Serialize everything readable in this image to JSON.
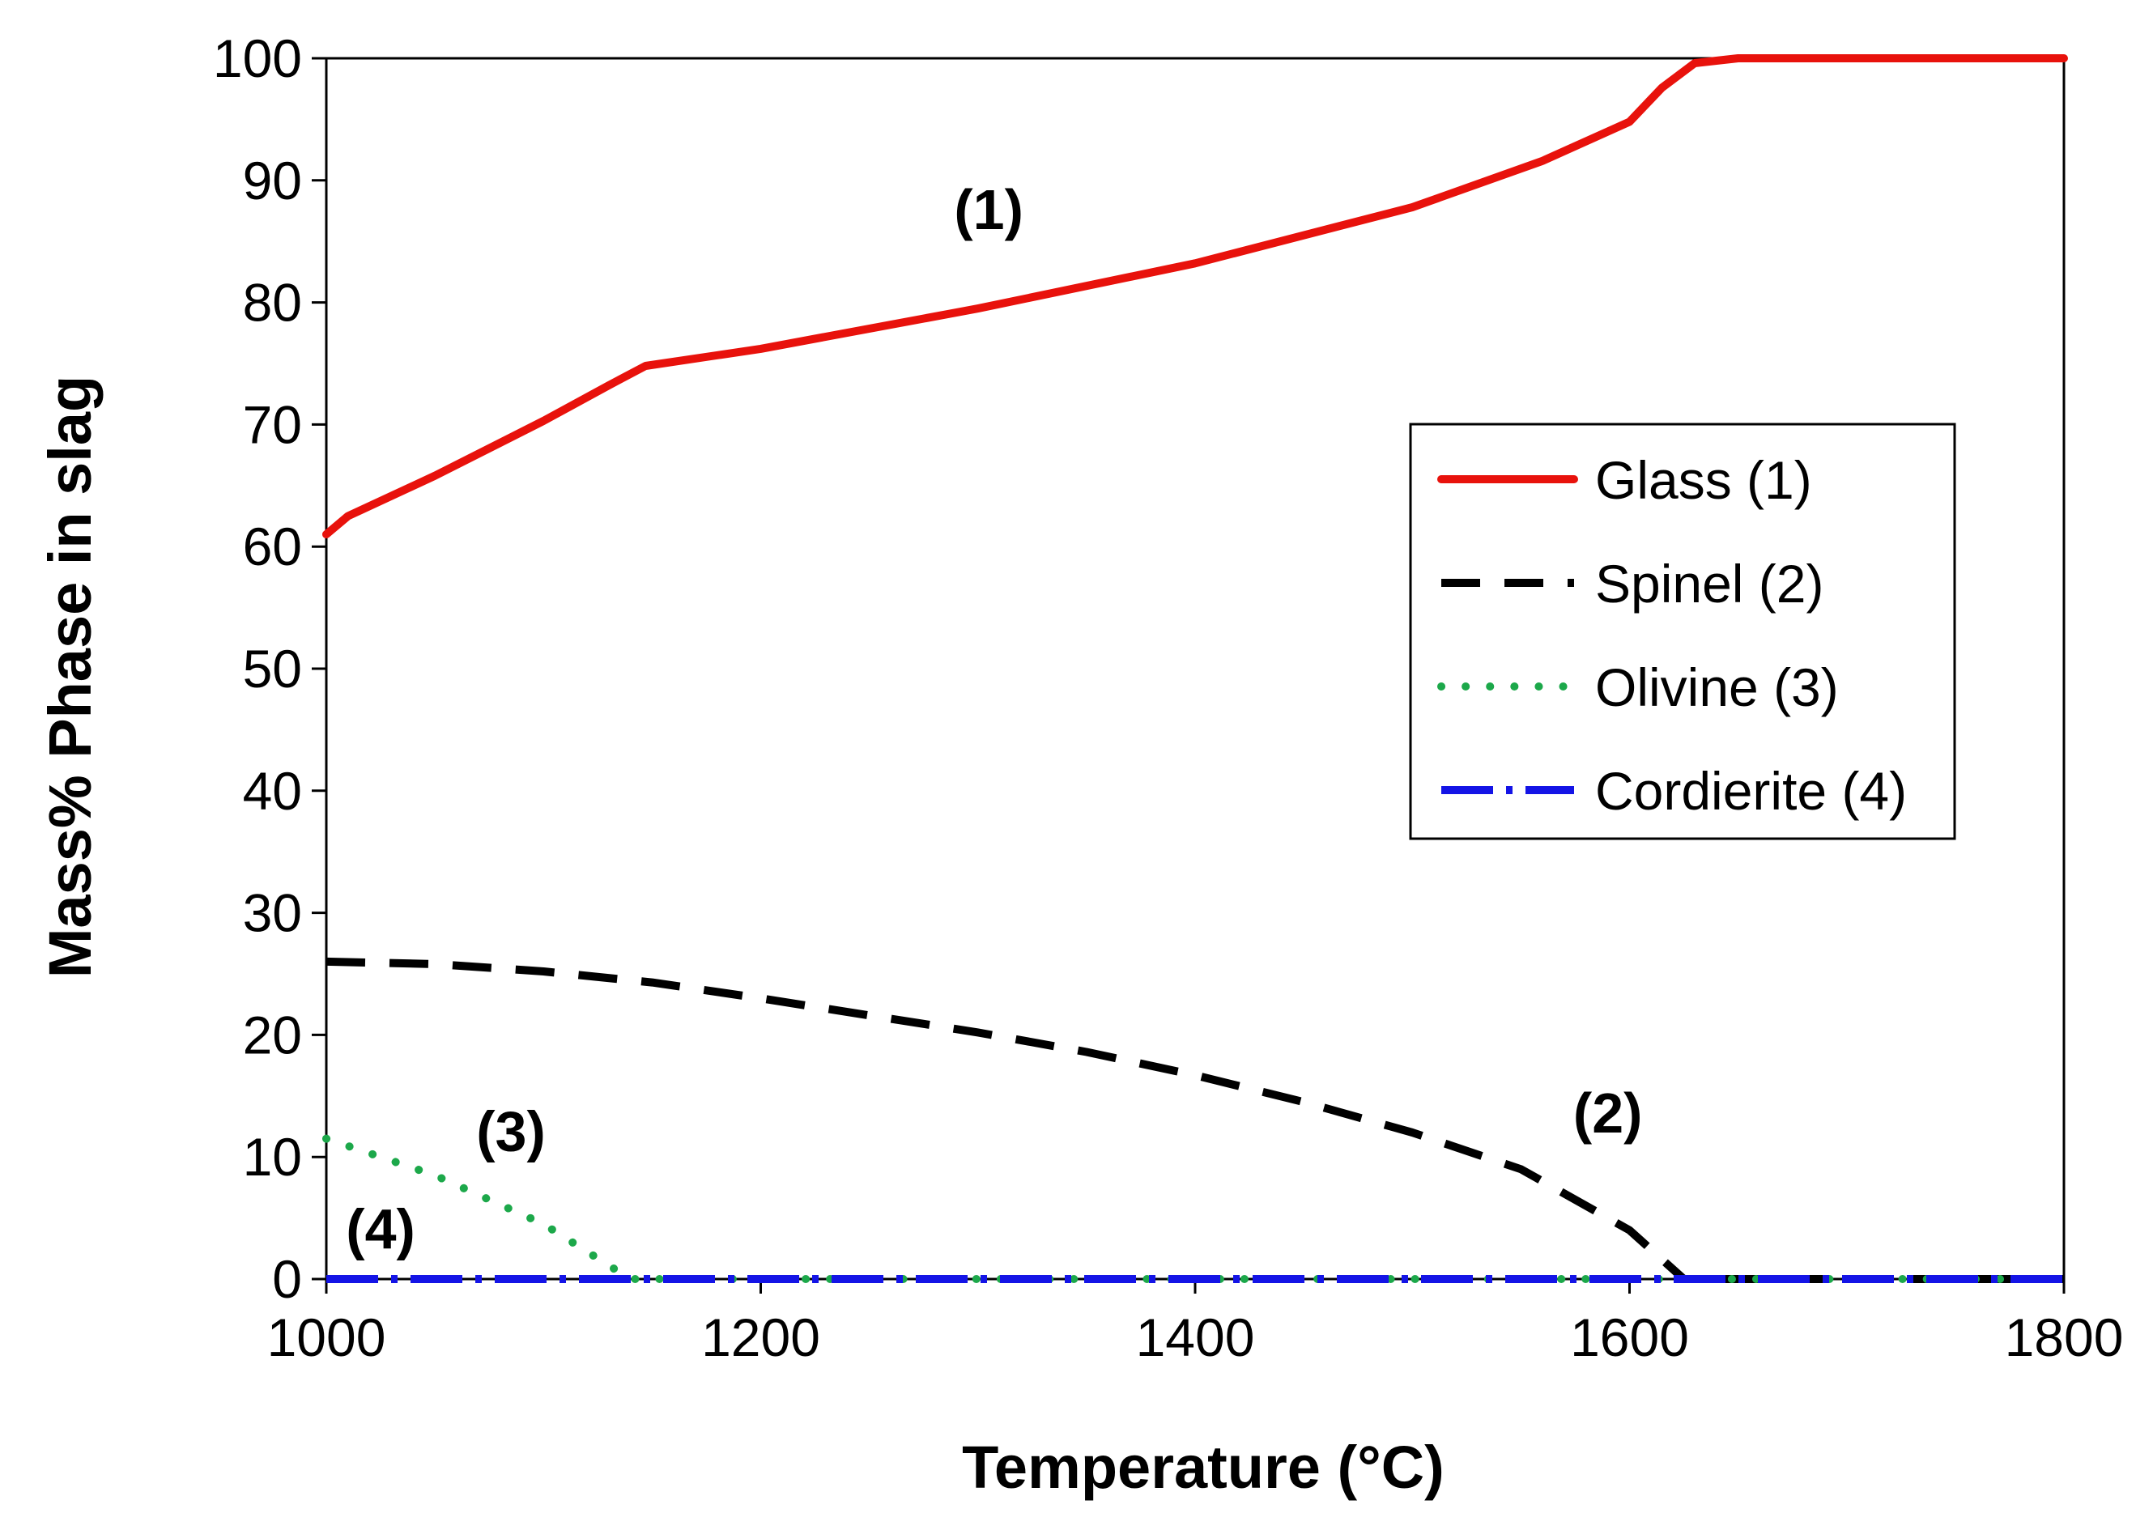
{
  "chart_data": {
    "type": "line",
    "title": "",
    "xlabel": "Temperature (°C)",
    "ylabel": "Mass% Phase in slag",
    "xlim": [
      1000,
      1800
    ],
    "ylim": [
      0,
      100
    ],
    "xticks": [
      1000,
      1200,
      1400,
      1600,
      1800
    ],
    "yticks": [
      0,
      10,
      20,
      30,
      40,
      50,
      60,
      70,
      80,
      90,
      100
    ],
    "grid": false,
    "legend_position": "center-right",
    "series": [
      {
        "name": "Glass (1)",
        "color": "#e8120c",
        "style": "solid",
        "x": [
          1000,
          1010,
          1050,
          1100,
          1130,
          1147,
          1200,
          1300,
          1400,
          1500,
          1560,
          1600,
          1615,
          1630,
          1650,
          1700,
          1800
        ],
        "y": [
          61,
          62.5,
          65.8,
          70.3,
          73.2,
          74.8,
          76.2,
          79.5,
          83.2,
          87.8,
          91.6,
          94.8,
          97.6,
          99.6,
          100,
          100,
          100
        ]
      },
      {
        "name": "Spinel (2)",
        "color": "#000000",
        "style": "dashed",
        "x": [
          1000,
          1050,
          1100,
          1150,
          1200,
          1250,
          1300,
          1350,
          1400,
          1450,
          1500,
          1550,
          1600,
          1625,
          1700,
          1800
        ],
        "y": [
          26,
          25.8,
          25.2,
          24.3,
          23,
          21.6,
          20.2,
          18.6,
          16.7,
          14.5,
          12,
          9,
          4,
          0,
          0,
          0
        ]
      },
      {
        "name": "Olivine (3)",
        "color": "#1ca84a",
        "style": "dotted",
        "x": [
          1000,
          1050,
          1100,
          1140,
          1200,
          1400,
          1600,
          1800
        ],
        "y": [
          11.5,
          8.5,
          4.5,
          0,
          0,
          0,
          0,
          0
        ]
      },
      {
        "name": "Cordierite (4)",
        "color": "#1414e6",
        "style": "dashdot",
        "x": [
          1000,
          1800
        ],
        "y": [
          0,
          0
        ]
      }
    ],
    "annotations": [
      {
        "text": "(1)",
        "x": 1305,
        "y": 86
      },
      {
        "text": "(2)",
        "x": 1590,
        "y": 12
      },
      {
        "text": "(3)",
        "x": 1085,
        "y": 10.5
      },
      {
        "text": "(4)",
        "x": 1025,
        "y": 2.5
      }
    ]
  }
}
